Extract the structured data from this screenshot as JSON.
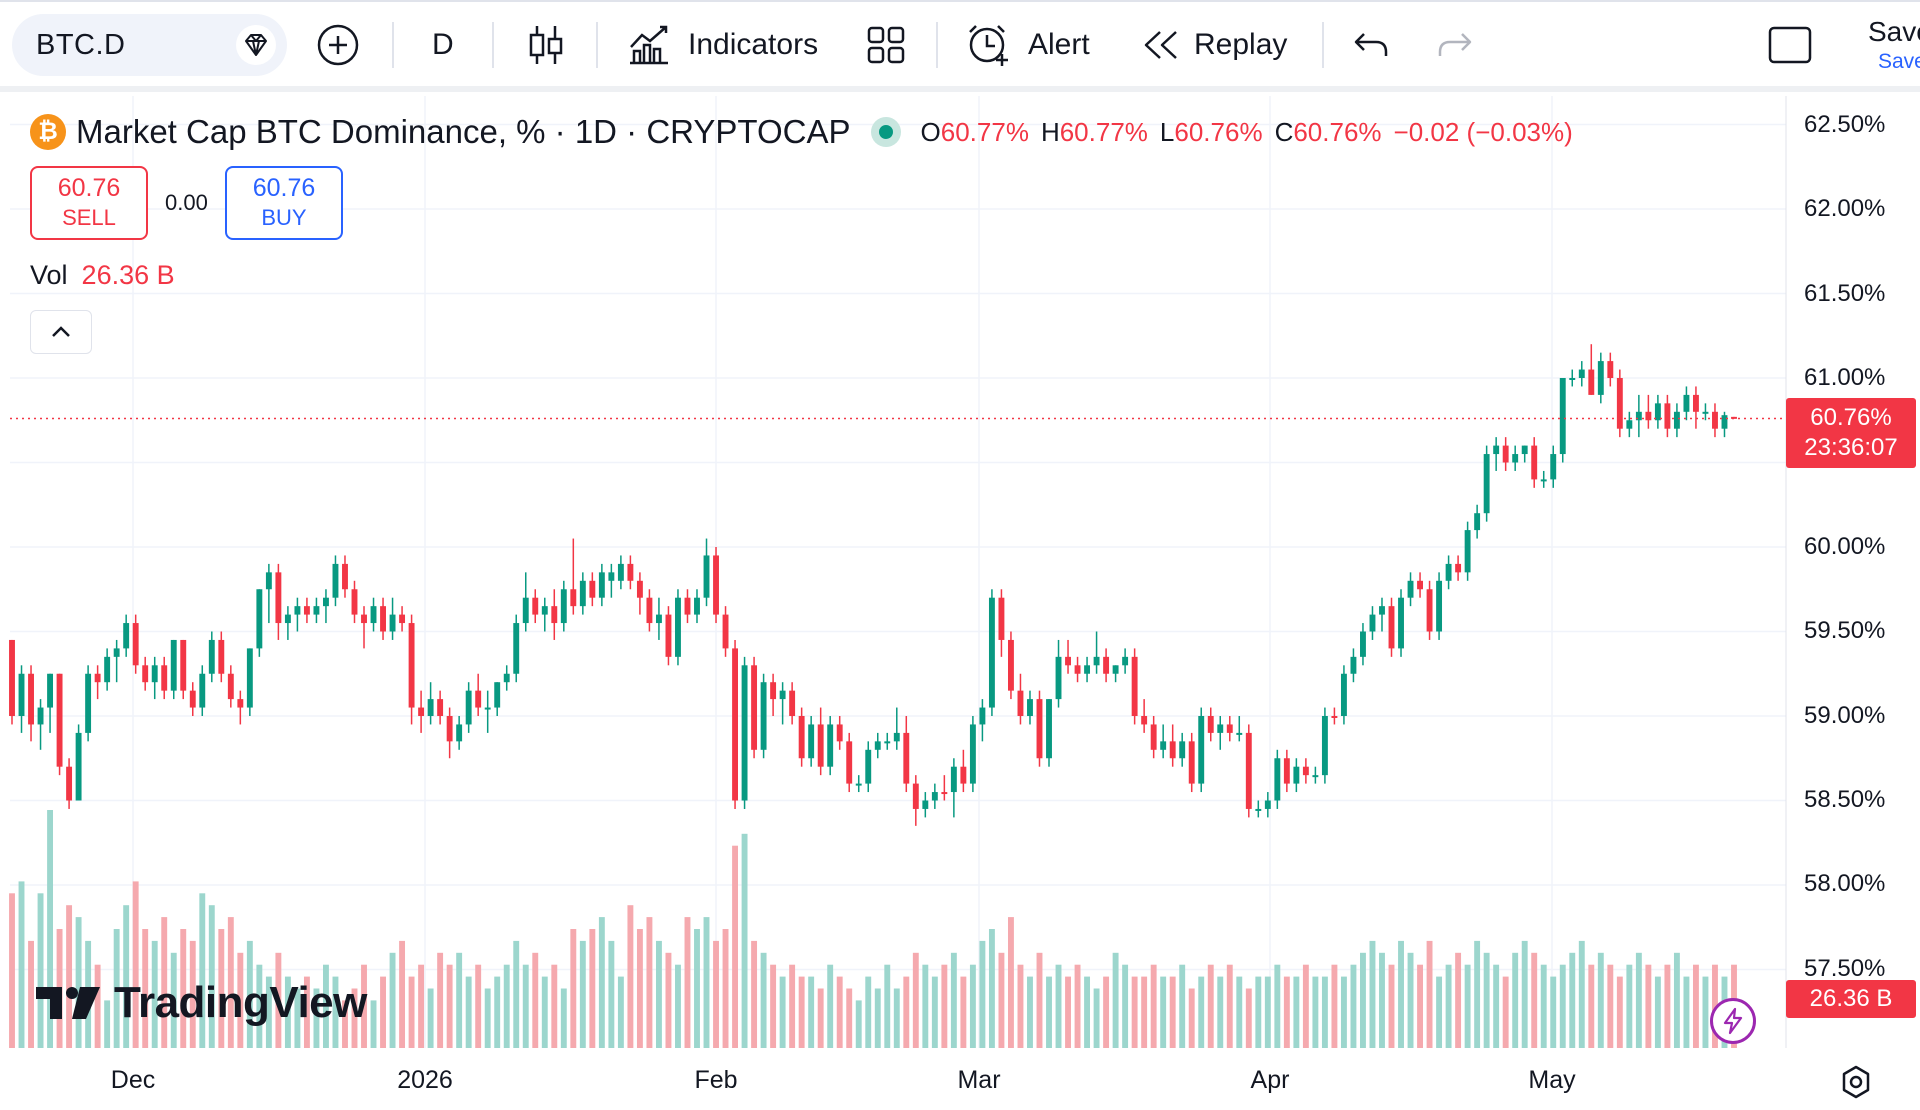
{
  "toolbar": {
    "symbol": "BTC.D",
    "interval": "D",
    "indicators_label": "Indicators",
    "alert_label": "Alert",
    "replay_label": "Replay",
    "save_label": "Save",
    "save_sub_label": "Save"
  },
  "legend": {
    "title": "Market Cap BTC Dominance, % · 1D · CRYPTOCAP",
    "o_key": "O",
    "o_val": "60.77%",
    "h_key": "H",
    "h_val": "60.77%",
    "l_key": "L",
    "l_val": "60.76%",
    "c_key": "C",
    "c_val": "60.76%",
    "change": "−0.02 (−0.03%)"
  },
  "trade": {
    "sell_price": "60.76",
    "sell_label": "SELL",
    "spread": "0.00",
    "buy_price": "60.76",
    "buy_label": "BUY"
  },
  "volume": {
    "label": "Vol",
    "value": "26.36 B"
  },
  "price_axis": [
    "62.50%",
    "62.00%",
    "61.50%",
    "61.00%",
    "60.00%",
    "59.50%",
    "59.00%",
    "58.50%",
    "58.00%",
    "57.50%"
  ],
  "last_price": {
    "price": "60.76%",
    "countdown": "23:36:07",
    "volume": "26.36 B"
  },
  "time_axis": [
    "Dec",
    "2026",
    "Feb",
    "Mar",
    "Apr",
    "May"
  ],
  "brand": "TradingView",
  "colors": {
    "up": "#089981",
    "down": "#f23645",
    "up_vol": "#9cd6cd",
    "down_vol": "#f5a9ae",
    "accent": "#2962ff"
  },
  "chart_data": {
    "type": "candlestick",
    "y_range": [
      57.25,
      62.6
    ],
    "last_close": 60.76,
    "candles": [
      [
        59.45,
        59.45,
        58.95,
        59.0,
        "d"
      ],
      [
        59.0,
        59.3,
        58.9,
        59.25,
        "u"
      ],
      [
        59.25,
        59.3,
        58.85,
        58.95,
        "d"
      ],
      [
        58.95,
        59.1,
        58.8,
        59.05,
        "u"
      ],
      [
        59.05,
        59.25,
        58.9,
        59.25,
        "u"
      ],
      [
        59.25,
        59.25,
        58.65,
        58.7,
        "d"
      ],
      [
        58.7,
        58.75,
        58.45,
        58.5,
        "d"
      ],
      [
        58.5,
        58.95,
        58.5,
        58.9,
        "u"
      ],
      [
        58.9,
        59.3,
        58.85,
        59.25,
        "u"
      ],
      [
        59.25,
        59.3,
        59.1,
        59.2,
        "d"
      ],
      [
        59.2,
        59.4,
        59.15,
        59.35,
        "u"
      ],
      [
        59.35,
        59.45,
        59.2,
        59.4,
        "u"
      ],
      [
        59.4,
        59.6,
        59.35,
        59.55,
        "u"
      ],
      [
        59.55,
        59.6,
        59.25,
        59.3,
        "d"
      ],
      [
        59.3,
        59.35,
        59.15,
        59.2,
        "d"
      ],
      [
        59.2,
        59.35,
        59.1,
        59.3,
        "u"
      ],
      [
        59.3,
        59.35,
        59.1,
        59.15,
        "d"
      ],
      [
        59.15,
        59.45,
        59.1,
        59.45,
        "u"
      ],
      [
        59.45,
        59.45,
        59.1,
        59.15,
        "d"
      ],
      [
        59.15,
        59.2,
        59.0,
        59.05,
        "d"
      ],
      [
        59.05,
        59.3,
        59.0,
        59.25,
        "u"
      ],
      [
        59.25,
        59.5,
        59.2,
        59.45,
        "u"
      ],
      [
        59.45,
        59.5,
        59.2,
        59.25,
        "d"
      ],
      [
        59.25,
        59.3,
        59.05,
        59.1,
        "d"
      ],
      [
        59.1,
        59.15,
        58.95,
        59.05,
        "d"
      ],
      [
        59.05,
        59.4,
        59.0,
        59.4,
        "u"
      ],
      [
        59.4,
        59.75,
        59.35,
        59.75,
        "u"
      ],
      [
        59.75,
        59.9,
        59.55,
        59.85,
        "u"
      ],
      [
        59.85,
        59.9,
        59.45,
        59.55,
        "d"
      ],
      [
        59.55,
        59.65,
        59.45,
        59.6,
        "u"
      ],
      [
        59.6,
        59.7,
        59.5,
        59.65,
        "u"
      ],
      [
        59.65,
        59.7,
        59.55,
        59.6,
        "d"
      ],
      [
        59.6,
        59.7,
        59.55,
        59.65,
        "u"
      ],
      [
        59.65,
        59.75,
        59.55,
        59.7,
        "u"
      ],
      [
        59.7,
        59.95,
        59.65,
        59.9,
        "u"
      ],
      [
        59.9,
        59.95,
        59.7,
        59.75,
        "d"
      ],
      [
        59.75,
        59.8,
        59.55,
        59.6,
        "d"
      ],
      [
        59.6,
        59.65,
        59.4,
        59.55,
        "d"
      ],
      [
        59.55,
        59.7,
        59.5,
        59.65,
        "u"
      ],
      [
        59.65,
        59.7,
        59.45,
        59.5,
        "d"
      ],
      [
        59.5,
        59.7,
        59.45,
        59.6,
        "u"
      ],
      [
        59.6,
        59.65,
        59.5,
        59.55,
        "d"
      ],
      [
        59.55,
        59.6,
        58.95,
        59.05,
        "d"
      ],
      [
        59.05,
        59.15,
        58.9,
        59.0,
        "d"
      ],
      [
        59.0,
        59.2,
        58.95,
        59.1,
        "u"
      ],
      [
        59.1,
        59.15,
        58.95,
        59.0,
        "d"
      ],
      [
        59.0,
        59.05,
        58.75,
        58.85,
        "d"
      ],
      [
        58.85,
        59.0,
        58.8,
        58.95,
        "u"
      ],
      [
        58.95,
        59.2,
        58.9,
        59.15,
        "u"
      ],
      [
        59.15,
        59.25,
        59.0,
        59.05,
        "d"
      ],
      [
        59.05,
        59.15,
        58.9,
        59.05,
        "u"
      ],
      [
        59.05,
        59.2,
        59.0,
        59.2,
        "u"
      ],
      [
        59.2,
        59.3,
        59.15,
        59.25,
        "u"
      ],
      [
        59.25,
        59.6,
        59.2,
        59.55,
        "u"
      ],
      [
        59.55,
        59.85,
        59.5,
        59.7,
        "u"
      ],
      [
        59.7,
        59.75,
        59.55,
        59.6,
        "d"
      ],
      [
        59.6,
        59.7,
        59.5,
        59.65,
        "u"
      ],
      [
        59.65,
        59.75,
        59.45,
        59.55,
        "d"
      ],
      [
        59.55,
        59.8,
        59.5,
        59.75,
        "u"
      ],
      [
        59.75,
        60.05,
        59.6,
        59.65,
        "d"
      ],
      [
        59.65,
        59.85,
        59.6,
        59.8,
        "u"
      ],
      [
        59.8,
        59.85,
        59.65,
        59.7,
        "d"
      ],
      [
        59.7,
        59.9,
        59.65,
        59.85,
        "u"
      ],
      [
        59.85,
        59.9,
        59.7,
        59.8,
        "u"
      ],
      [
        59.8,
        59.95,
        59.75,
        59.9,
        "u"
      ],
      [
        59.9,
        59.95,
        59.75,
        59.8,
        "d"
      ],
      [
        59.8,
        59.85,
        59.6,
        59.7,
        "d"
      ],
      [
        59.7,
        59.75,
        59.5,
        59.55,
        "d"
      ],
      [
        59.55,
        59.7,
        59.45,
        59.6,
        "u"
      ],
      [
        59.6,
        59.65,
        59.3,
        59.35,
        "d"
      ],
      [
        59.35,
        59.75,
        59.3,
        59.7,
        "u"
      ],
      [
        59.7,
        59.75,
        59.55,
        59.6,
        "d"
      ],
      [
        59.6,
        59.75,
        59.55,
        59.7,
        "u"
      ],
      [
        59.7,
        60.05,
        59.65,
        59.95,
        "u"
      ],
      [
        59.95,
        60.0,
        59.55,
        59.6,
        "d"
      ],
      [
        59.6,
        59.65,
        59.35,
        59.4,
        "d"
      ],
      [
        59.4,
        59.45,
        58.45,
        58.5,
        "d"
      ],
      [
        58.5,
        59.35,
        58.45,
        59.3,
        "u"
      ],
      [
        59.3,
        59.35,
        58.75,
        58.8,
        "d"
      ],
      [
        58.8,
        59.25,
        58.75,
        59.2,
        "u"
      ],
      [
        59.2,
        59.25,
        59.0,
        59.1,
        "d"
      ],
      [
        59.1,
        59.2,
        58.95,
        59.15,
        "u"
      ],
      [
        59.15,
        59.2,
        58.95,
        59.0,
        "d"
      ],
      [
        59.0,
        59.05,
        58.7,
        58.75,
        "d"
      ],
      [
        58.75,
        59.0,
        58.7,
        58.95,
        "u"
      ],
      [
        58.95,
        59.05,
        58.65,
        58.7,
        "d"
      ],
      [
        58.7,
        59.0,
        58.65,
        58.95,
        "u"
      ],
      [
        58.95,
        59.0,
        58.8,
        58.85,
        "d"
      ],
      [
        58.85,
        58.9,
        58.55,
        58.6,
        "d"
      ],
      [
        58.6,
        58.65,
        58.55,
        58.6,
        "u"
      ],
      [
        58.6,
        58.85,
        58.55,
        58.8,
        "u"
      ],
      [
        58.8,
        58.9,
        58.75,
        58.85,
        "u"
      ],
      [
        58.85,
        58.9,
        58.8,
        58.85,
        "u"
      ],
      [
        58.85,
        59.05,
        58.8,
        58.9,
        "u"
      ],
      [
        58.9,
        59.0,
        58.55,
        58.6,
        "d"
      ],
      [
        58.6,
        58.65,
        58.35,
        58.45,
        "d"
      ],
      [
        58.45,
        58.55,
        58.4,
        58.5,
        "u"
      ],
      [
        58.5,
        58.6,
        58.45,
        58.55,
        "u"
      ],
      [
        58.55,
        58.65,
        58.5,
        58.55,
        "d"
      ],
      [
        58.55,
        58.75,
        58.4,
        58.7,
        "u"
      ],
      [
        58.7,
        58.8,
        58.55,
        58.6,
        "d"
      ],
      [
        58.6,
        59.0,
        58.55,
        58.95,
        "u"
      ],
      [
        58.95,
        59.1,
        58.85,
        59.05,
        "u"
      ],
      [
        59.05,
        59.75,
        59.0,
        59.7,
        "u"
      ],
      [
        59.7,
        59.75,
        59.35,
        59.45,
        "d"
      ],
      [
        59.45,
        59.5,
        59.1,
        59.15,
        "d"
      ],
      [
        59.15,
        59.25,
        58.95,
        59.0,
        "d"
      ],
      [
        59.0,
        59.15,
        58.95,
        59.1,
        "u"
      ],
      [
        59.1,
        59.15,
        58.7,
        58.75,
        "d"
      ],
      [
        58.75,
        59.1,
        58.7,
        59.1,
        "u"
      ],
      [
        59.1,
        59.45,
        59.05,
        59.35,
        "u"
      ],
      [
        59.35,
        59.45,
        59.25,
        59.3,
        "d"
      ],
      [
        59.3,
        59.35,
        59.2,
        59.25,
        "d"
      ],
      [
        59.25,
        59.35,
        59.2,
        59.3,
        "u"
      ],
      [
        59.3,
        59.5,
        59.25,
        59.35,
        "u"
      ],
      [
        59.35,
        59.4,
        59.2,
        59.25,
        "d"
      ],
      [
        59.25,
        59.3,
        59.2,
        59.3,
        "u"
      ],
      [
        59.3,
        59.4,
        59.25,
        59.35,
        "u"
      ],
      [
        59.35,
        59.4,
        58.95,
        59.0,
        "d"
      ],
      [
        59.0,
        59.1,
        58.9,
        58.95,
        "d"
      ],
      [
        58.95,
        59.0,
        58.75,
        58.8,
        "d"
      ],
      [
        58.8,
        58.95,
        58.75,
        58.85,
        "u"
      ],
      [
        58.85,
        58.95,
        58.7,
        58.75,
        "d"
      ],
      [
        58.75,
        58.9,
        58.7,
        58.85,
        "u"
      ],
      [
        58.85,
        58.9,
        58.55,
        58.6,
        "d"
      ],
      [
        58.6,
        59.05,
        58.55,
        59.0,
        "u"
      ],
      [
        59.0,
        59.05,
        58.85,
        58.9,
        "d"
      ],
      [
        58.9,
        59.0,
        58.8,
        58.95,
        "u"
      ],
      [
        58.95,
        59.0,
        58.85,
        58.9,
        "d"
      ],
      [
        58.9,
        59.0,
        58.85,
        58.9,
        "u"
      ],
      [
        58.9,
        58.95,
        58.4,
        58.45,
        "d"
      ],
      [
        58.45,
        58.5,
        58.4,
        58.45,
        "u"
      ],
      [
        58.45,
        58.55,
        58.4,
        58.5,
        "u"
      ],
      [
        58.5,
        58.8,
        58.45,
        58.75,
        "u"
      ],
      [
        58.75,
        58.8,
        58.55,
        58.6,
        "d"
      ],
      [
        58.6,
        58.75,
        58.55,
        58.7,
        "u"
      ],
      [
        58.7,
        58.75,
        58.6,
        58.65,
        "d"
      ],
      [
        58.65,
        58.7,
        58.6,
        58.65,
        "u"
      ],
      [
        58.65,
        59.05,
        58.6,
        59.0,
        "u"
      ],
      [
        59.0,
        59.05,
        58.95,
        59.0,
        "d"
      ],
      [
        59.0,
        59.3,
        58.95,
        59.25,
        "u"
      ],
      [
        59.25,
        59.4,
        59.2,
        59.35,
        "u"
      ],
      [
        59.35,
        59.55,
        59.3,
        59.5,
        "u"
      ],
      [
        59.5,
        59.65,
        59.45,
        59.6,
        "u"
      ],
      [
        59.6,
        59.7,
        59.5,
        59.65,
        "u"
      ],
      [
        59.65,
        59.7,
        59.35,
        59.4,
        "d"
      ],
      [
        59.4,
        59.75,
        59.35,
        59.7,
        "u"
      ],
      [
        59.7,
        59.85,
        59.65,
        59.8,
        "u"
      ],
      [
        59.8,
        59.85,
        59.7,
        59.75,
        "d"
      ],
      [
        59.75,
        59.8,
        59.45,
        59.5,
        "d"
      ],
      [
        59.5,
        59.85,
        59.45,
        59.8,
        "u"
      ],
      [
        59.8,
        59.95,
        59.75,
        59.9,
        "u"
      ],
      [
        59.9,
        59.95,
        59.8,
        59.85,
        "d"
      ],
      [
        59.85,
        60.15,
        59.8,
        60.1,
        "u"
      ],
      [
        60.1,
        60.25,
        60.05,
        60.2,
        "u"
      ],
      [
        60.2,
        60.6,
        60.15,
        60.55,
        "u"
      ],
      [
        60.55,
        60.65,
        60.45,
        60.6,
        "u"
      ],
      [
        60.6,
        60.65,
        60.45,
        60.5,
        "d"
      ],
      [
        60.5,
        60.6,
        60.45,
        60.55,
        "u"
      ],
      [
        60.55,
        60.6,
        60.5,
        60.6,
        "u"
      ],
      [
        60.6,
        60.65,
        60.35,
        60.4,
        "d"
      ],
      [
        60.4,
        60.45,
        60.35,
        60.4,
        "u"
      ],
      [
        60.4,
        60.6,
        60.35,
        60.55,
        "u"
      ],
      [
        60.55,
        61.0,
        60.5,
        61.0,
        "u"
      ],
      [
        61.0,
        61.05,
        60.95,
        61.0,
        "u"
      ],
      [
        61.0,
        61.1,
        60.95,
        61.05,
        "u"
      ],
      [
        61.05,
        61.2,
        60.9,
        60.9,
        "d"
      ],
      [
        60.9,
        61.15,
        60.85,
        61.1,
        "u"
      ],
      [
        61.1,
        61.15,
        60.95,
        61.0,
        "d"
      ],
      [
        61.0,
        61.05,
        60.65,
        60.7,
        "d"
      ],
      [
        60.7,
        60.8,
        60.65,
        60.75,
        "u"
      ],
      [
        60.75,
        60.9,
        60.65,
        60.8,
        "u"
      ],
      [
        60.8,
        60.9,
        60.7,
        60.75,
        "d"
      ],
      [
        60.75,
        60.9,
        60.7,
        60.85,
        "u"
      ],
      [
        60.85,
        60.9,
        60.65,
        60.7,
        "d"
      ],
      [
        60.7,
        60.85,
        60.65,
        60.8,
        "u"
      ],
      [
        60.8,
        60.95,
        60.75,
        60.9,
        "u"
      ],
      [
        60.9,
        60.95,
        60.7,
        60.8,
        "d"
      ],
      [
        60.8,
        60.85,
        60.75,
        60.8,
        "u"
      ],
      [
        60.8,
        60.85,
        60.65,
        60.7,
        "d"
      ],
      [
        60.7,
        60.8,
        60.65,
        60.78,
        "u"
      ],
      [
        60.77,
        60.77,
        60.76,
        60.76,
        "d"
      ]
    ],
    "volume_rel": [
      0.65,
      0.7,
      0.45,
      0.65,
      1.0,
      0.5,
      0.6,
      0.55,
      0.45,
      0.35,
      0.2,
      0.5,
      0.6,
      0.7,
      0.5,
      0.45,
      0.55,
      0.4,
      0.5,
      0.45,
      0.65,
      0.6,
      0.5,
      0.55,
      0.4,
      0.45,
      0.35,
      0.3,
      0.4,
      0.3,
      0.25,
      0.3,
      0.25,
      0.35,
      0.3,
      0.2,
      0.25,
      0.35,
      0.2,
      0.3,
      0.4,
      0.45,
      0.3,
      0.35,
      0.25,
      0.4,
      0.35,
      0.4,
      0.3,
      0.35,
      0.25,
      0.3,
      0.35,
      0.45,
      0.35,
      0.4,
      0.3,
      0.35,
      0.25,
      0.5,
      0.45,
      0.5,
      0.55,
      0.45,
      0.3,
      0.6,
      0.5,
      0.55,
      0.45,
      0.4,
      0.35,
      0.55,
      0.5,
      0.55,
      0.45,
      0.5,
      0.85,
      0.9,
      0.45,
      0.4,
      0.35,
      0.3,
      0.35,
      0.3,
      0.3,
      0.25,
      0.35,
      0.3,
      0.25,
      0.2,
      0.3,
      0.25,
      0.35,
      0.25,
      0.3,
      0.4,
      0.35,
      0.3,
      0.35,
      0.4,
      0.3,
      0.35,
      0.45,
      0.5,
      0.4,
      0.55,
      0.35,
      0.3,
      0.4,
      0.3,
      0.35,
      0.3,
      0.35,
      0.3,
      0.25,
      0.3,
      0.4,
      0.35,
      0.3,
      0.3,
      0.35,
      0.3,
      0.3,
      0.35,
      0.25,
      0.3,
      0.35,
      0.3,
      0.35,
      0.3,
      0.25,
      0.3,
      0.3,
      0.35,
      0.3,
      0.3,
      0.35,
      0.3,
      0.3,
      0.35,
      0.3,
      0.35,
      0.4,
      0.45,
      0.4,
      0.35,
      0.45,
      0.4,
      0.35,
      0.45,
      0.3,
      0.35,
      0.4,
      0.35,
      0.45,
      0.4,
      0.35,
      0.3,
      0.4,
      0.45,
      0.4,
      0.35,
      0.3,
      0.35,
      0.4,
      0.45,
      0.35,
      0.4,
      0.35,
      0.3,
      0.35,
      0.4,
      0.35,
      0.3,
      0.35,
      0.4,
      0.3,
      0.35,
      0.3,
      0.35,
      0.3,
      0.35,
      0.4,
      0.3,
      0.35,
      0.3,
      0.25,
      0.3,
      0.35,
      0.3,
      0.25,
      0.3,
      0.2
    ],
    "volume_up_color": "#9cd6cd",
    "volume_down_color": "#f5a9ae"
  }
}
